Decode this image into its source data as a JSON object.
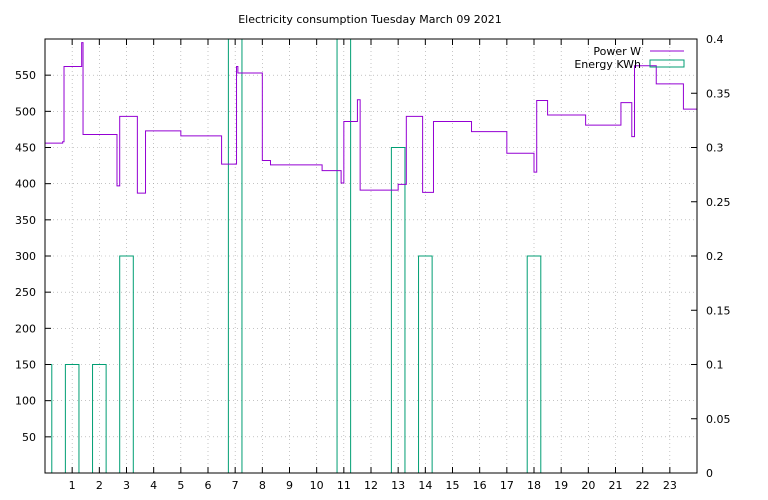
{
  "chart_data": {
    "type": "line",
    "title": "Electricity consumption Tuesday March 09 2021",
    "xlabel": "",
    "ylabel": "",
    "y2label": "",
    "grid": true,
    "legend_position": "top-right",
    "x_range": [
      0,
      24
    ],
    "x_ticks": [
      "1",
      "2",
      "3",
      "4",
      "5",
      "6",
      "7",
      "8",
      "9",
      "10",
      "11",
      "12",
      "13",
      "14",
      "15",
      "16",
      "17",
      "18",
      "19",
      "20",
      "21",
      "22",
      "23"
    ],
    "ylim": [
      0,
      600
    ],
    "y_ticks": [
      "50",
      "100",
      "150",
      "200",
      "250",
      "300",
      "350",
      "400",
      "450",
      "500",
      "550"
    ],
    "y2lim": [
      0,
      0.4
    ],
    "y2_ticks": [
      "0",
      "0.05",
      "0.1",
      "0.15",
      "0.2",
      "0.25",
      "0.3",
      "0.35",
      "0.4"
    ],
    "colors": {
      "power": "#9400d3",
      "energy": "#009e73"
    },
    "series": [
      {
        "name": "Power W",
        "axis": "y",
        "style": "steps",
        "x": [
          0.0,
          0.65,
          0.7,
          1.3,
          1.35,
          1.4,
          2.6,
          2.65,
          2.75,
          3.3,
          3.4,
          3.7,
          4.3,
          5.0,
          6.0,
          6.5,
          7.0,
          7.05,
          7.1,
          7.2,
          8.0,
          8.3,
          9.0,
          9.5,
          10.2,
          10.7,
          10.9,
          11.0,
          11.5,
          11.6,
          12.0,
          12.7,
          13.0,
          13.3,
          13.8,
          13.9,
          14.2,
          14.3,
          15.0,
          15.7,
          16.2,
          17.0,
          17.5,
          18.0,
          18.1,
          18.5,
          19.2,
          19.9,
          20.6,
          21.2,
          21.5,
          21.6,
          21.7,
          22.2,
          22.5,
          23.0,
          23.5,
          24.0
        ],
        "y": [
          456,
          458,
          562,
          562,
          595,
          468,
          468,
          397,
          493,
          493,
          387,
          473,
          473,
          466,
          466,
          427,
          427,
          562,
          553,
          553,
          432,
          426,
          426,
          426,
          418,
          418,
          401,
          486,
          516,
          391,
          391,
          391,
          399,
          493,
          493,
          388,
          388,
          486,
          486,
          472,
          472,
          442,
          442,
          416,
          515,
          495,
          495,
          481,
          481,
          512,
          512,
          465,
          563,
          563,
          538,
          538,
          503,
          503
        ]
      },
      {
        "name": "Energy KWh",
        "axis": "y2",
        "style": "boxes",
        "boxes": [
          {
            "x": 0.0,
            "value": 0.1
          },
          {
            "x": 1.0,
            "value": 0.1
          },
          {
            "x": 2.0,
            "value": 0.1
          },
          {
            "x": 3.0,
            "value": 0.2
          },
          {
            "x": 7.0,
            "value": 0.4
          },
          {
            "x": 11.0,
            "value": 0.4
          },
          {
            "x": 13.0,
            "value": 0.3
          },
          {
            "x": 14.0,
            "value": 0.2
          },
          {
            "x": 18.0,
            "value": 0.2
          }
        ]
      }
    ]
  }
}
